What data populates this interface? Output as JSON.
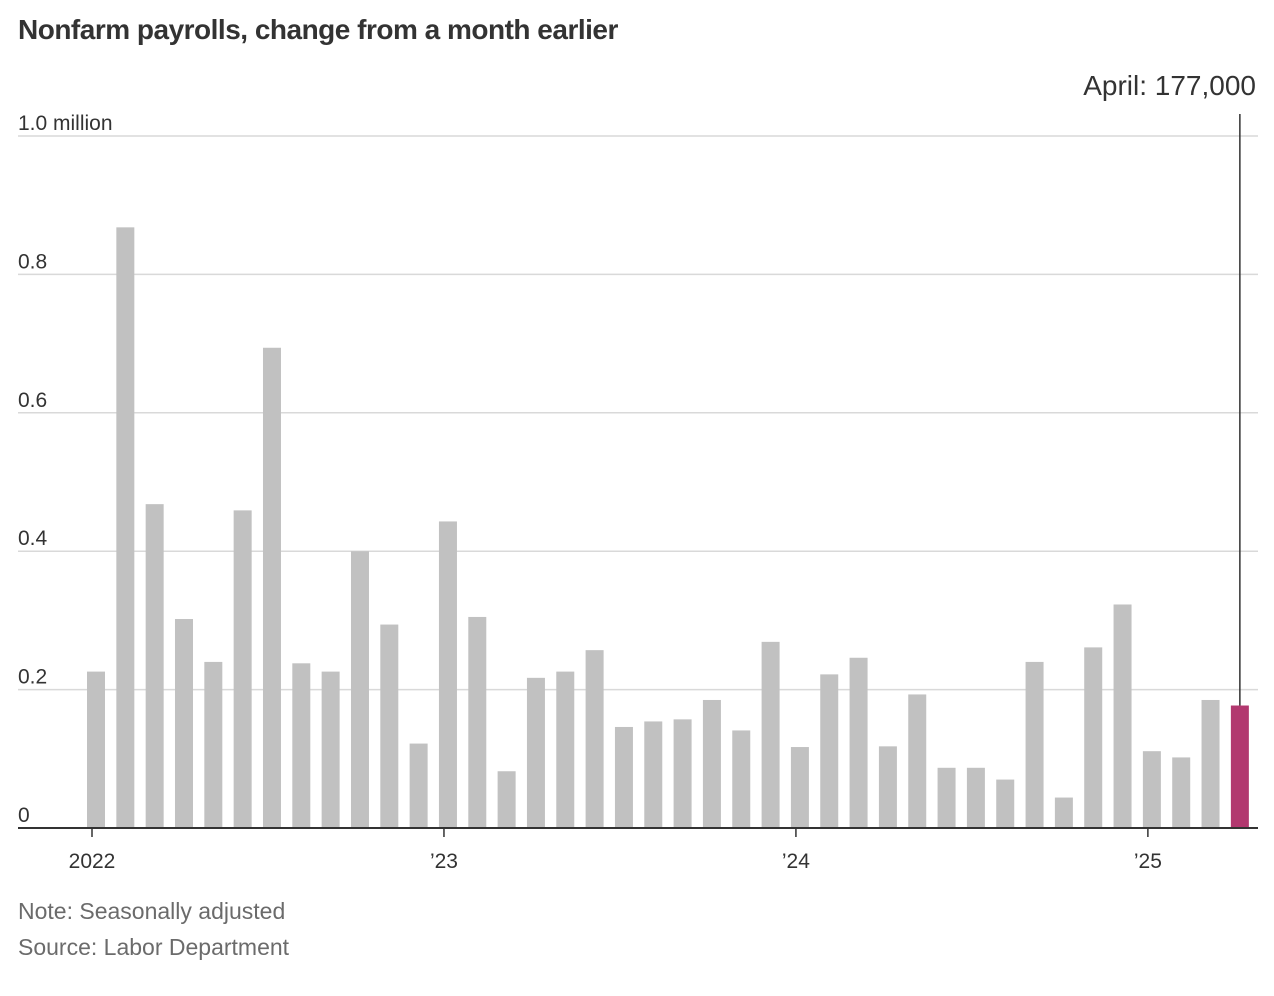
{
  "title": "Nonfarm payrolls, change from a month earlier",
  "note": "Note: Seasonally adjusted",
  "source": "Source: Labor Department",
  "colors": {
    "bar": "#c1c1c1",
    "highlight": "#b2386f",
    "grid": "#d9d9d9",
    "axis": "#333333"
  },
  "chart_data": {
    "type": "bar",
    "title": "Nonfarm payrolls, change from a month earlier",
    "xlabel": "",
    "ylabel": "",
    "unit": "million",
    "ylim": [
      0,
      1.0
    ],
    "y_ticks": [
      {
        "value": 0,
        "label": "0"
      },
      {
        "value": 0.2,
        "label": "0.2"
      },
      {
        "value": 0.4,
        "label": "0.4"
      },
      {
        "value": 0.6,
        "label": "0.6"
      },
      {
        "value": 0.8,
        "label": "0.8"
      },
      {
        "value": 1.0,
        "label": "1.0 million"
      }
    ],
    "x_ticks": [
      {
        "index": 0,
        "label": "2022"
      },
      {
        "index": 12,
        "label": "’23"
      },
      {
        "index": 24,
        "label": "’24"
      },
      {
        "index": 36,
        "label": "’25"
      }
    ],
    "categories": [
      "Jan 2022",
      "Feb 2022",
      "Mar 2022",
      "Apr 2022",
      "May 2022",
      "Jun 2022",
      "Jul 2022",
      "Aug 2022",
      "Sep 2022",
      "Oct 2022",
      "Nov 2022",
      "Dec 2022",
      "Jan 2023",
      "Feb 2023",
      "Mar 2023",
      "Apr 2023",
      "May 2023",
      "Jun 2023",
      "Jul 2023",
      "Aug 2023",
      "Sep 2023",
      "Oct 2023",
      "Nov 2023",
      "Dec 2023",
      "Jan 2024",
      "Feb 2024",
      "Mar 2024",
      "Apr 2024",
      "May 2024",
      "Jun 2024",
      "Jul 2024",
      "Aug 2024",
      "Sep 2024",
      "Oct 2024",
      "Nov 2024",
      "Dec 2024",
      "Jan 2025",
      "Feb 2025",
      "Mar 2025",
      "Apr 2025"
    ],
    "values": [
      0.226,
      0.868,
      0.468,
      0.302,
      0.24,
      0.459,
      0.694,
      0.238,
      0.226,
      0.4,
      0.294,
      0.122,
      0.443,
      0.305,
      0.082,
      0.217,
      0.226,
      0.257,
      0.146,
      0.154,
      0.157,
      0.185,
      0.141,
      0.269,
      0.117,
      0.222,
      0.246,
      0.118,
      0.193,
      0.087,
      0.087,
      0.07,
      0.24,
      0.044,
      0.261,
      0.323,
      0.111,
      0.102,
      0.185,
      0.177
    ],
    "highlight_index": 39,
    "annotation": {
      "label": "April: 177,000",
      "index": 39
    }
  }
}
